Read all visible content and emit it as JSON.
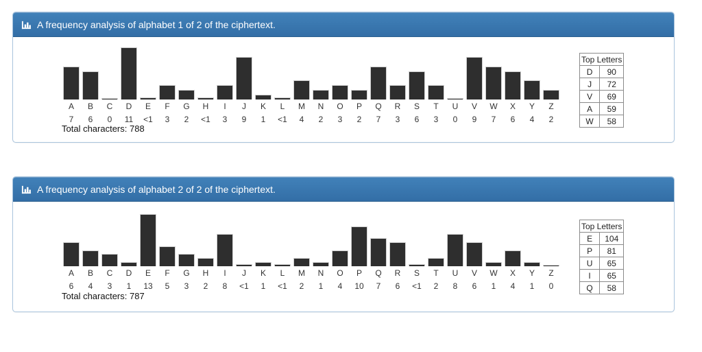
{
  "colors": {
    "header_blue_top": "#4181b9",
    "header_blue_bottom": "#336ea6",
    "panel_border": "#a9c4dd",
    "bar_fill": "#2e2e2e",
    "table_border": "#8a8a8a",
    "text": "#333333"
  },
  "chart_data": [
    {
      "type": "bar",
      "title": "A frequency analysis of alphabet 1 of 2 of the ciphertext.",
      "icon": "bar-chart-icon",
      "categories": [
        "A",
        "B",
        "C",
        "D",
        "E",
        "F",
        "G",
        "H",
        "I",
        "J",
        "K",
        "L",
        "M",
        "N",
        "O",
        "P",
        "Q",
        "R",
        "S",
        "T",
        "U",
        "V",
        "W",
        "X",
        "Y",
        "Z"
      ],
      "value_labels": [
        "7",
        "6",
        "0",
        "11",
        "<1",
        "3",
        "2",
        "<1",
        "3",
        "9",
        "1",
        "<1",
        "4",
        "2",
        "3",
        "2",
        "7",
        "3",
        "6",
        "3",
        "0",
        "9",
        "7",
        "6",
        "4",
        "2"
      ],
      "values": [
        7,
        6,
        0,
        11,
        0.5,
        3,
        2,
        0.5,
        3,
        9,
        1,
        0.5,
        4,
        2,
        3,
        2,
        7,
        3,
        6,
        3,
        0,
        9,
        7,
        6,
        4,
        2
      ],
      "ymax": 11,
      "ylim": [
        0,
        11
      ],
      "xlabel": "",
      "ylabel": "",
      "grid": false,
      "legend": false,
      "total_label": "Total characters:",
      "total_value": "788",
      "top_letters": {
        "title": "Top Letters",
        "rows": [
          {
            "letter": "D",
            "count": "90"
          },
          {
            "letter": "J",
            "count": "72"
          },
          {
            "letter": "V",
            "count": "69"
          },
          {
            "letter": "A",
            "count": "59"
          },
          {
            "letter": "W",
            "count": "58"
          }
        ]
      }
    },
    {
      "type": "bar",
      "title": "A frequency analysis of alphabet 2 of 2 of the ciphertext.",
      "icon": "bar-chart-icon",
      "categories": [
        "A",
        "B",
        "C",
        "D",
        "E",
        "F",
        "G",
        "H",
        "I",
        "J",
        "K",
        "L",
        "M",
        "N",
        "O",
        "P",
        "Q",
        "R",
        "S",
        "T",
        "U",
        "V",
        "W",
        "X",
        "Y",
        "Z"
      ],
      "value_labels": [
        "6",
        "4",
        "3",
        "1",
        "13",
        "5",
        "3",
        "2",
        "8",
        "<1",
        "1",
        "<1",
        "2",
        "1",
        "4",
        "10",
        "7",
        "6",
        "<1",
        "2",
        "8",
        "6",
        "1",
        "4",
        "1",
        "0"
      ],
      "values": [
        6,
        4,
        3,
        1,
        13,
        5,
        3,
        2,
        8,
        0.5,
        1,
        0.5,
        2,
        1,
        4,
        10,
        7,
        6,
        0.5,
        2,
        8,
        6,
        1,
        4,
        1,
        0
      ],
      "ymax": 13,
      "ylim": [
        0,
        13
      ],
      "xlabel": "",
      "ylabel": "",
      "grid": false,
      "legend": false,
      "total_label": "Total characters:",
      "total_value": "787",
      "top_letters": {
        "title": "Top Letters",
        "rows": [
          {
            "letter": "E",
            "count": "104"
          },
          {
            "letter": "P",
            "count": "81"
          },
          {
            "letter": "U",
            "count": "65"
          },
          {
            "letter": "I",
            "count": "65"
          },
          {
            "letter": "Q",
            "count": "58"
          }
        ]
      }
    }
  ]
}
